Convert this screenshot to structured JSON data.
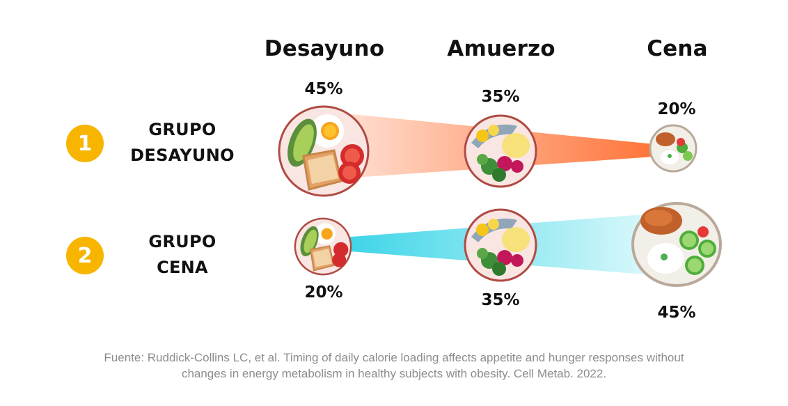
{
  "meals": {
    "breakfast": "Desayuno",
    "lunch": "Amuerzo",
    "dinner": "Cena"
  },
  "groups": [
    {
      "number": "1",
      "line1": "GRUPO",
      "line2": "DESAYUNO",
      "breakfast_pct": "45%",
      "lunch_pct": "35%",
      "dinner_pct": "20%"
    },
    {
      "number": "2",
      "line1": "GRUPO",
      "line2": "CENA",
      "breakfast_pct": "20%",
      "lunch_pct": "35%",
      "dinner_pct": "45%"
    }
  ],
  "source": {
    "line1": "Fuente: Ruddick-Collins LC, et al. Timing of daily calorie loading affects appetite and hunger responses without",
    "line2": "changes in energy metabolism in healthy subjects with obesity. Cell Metab. 2022."
  },
  "colors": {
    "badge": "#f7b500",
    "beam_group1": "#ff7a45",
    "beam_group2": "#35d6e8",
    "plate_rim": "#b04a44",
    "dinner_rim": "#b9a99a"
  }
}
